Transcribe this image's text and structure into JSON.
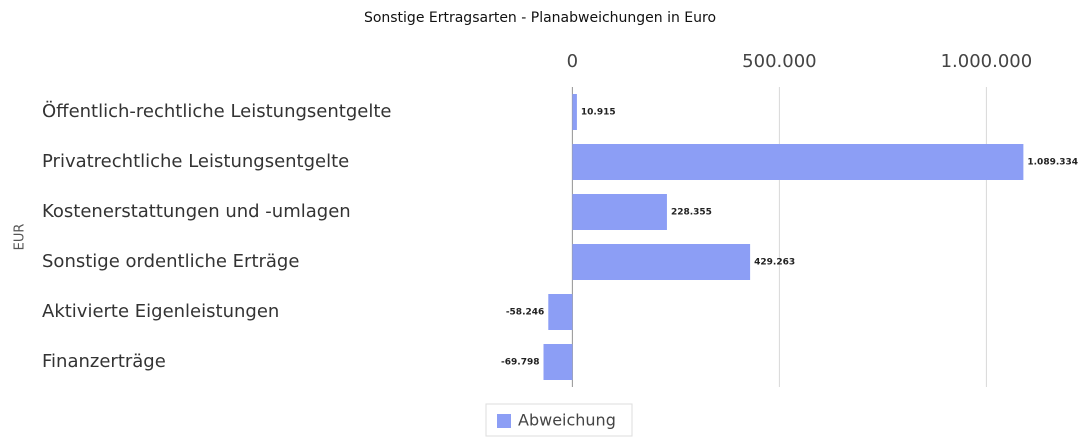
{
  "chart_data": {
    "type": "bar",
    "orientation": "horizontal",
    "title": "Sonstige Ertragsarten - Planabweichungen in Euro",
    "y_axis_label": "EUR",
    "categories": [
      "Öffentlich-rechtliche Leistungsentgelte",
      "Privatrechtliche Leistungsentgelte",
      "Kostenerstattungen und -umlagen",
      "Sonstige ordentliche Erträge",
      "Aktivierte Eigenleistungen",
      "Finanzerträge"
    ],
    "series": [
      {
        "name": "Abweichung",
        "color": "#8c9ef5",
        "values": [
          10915,
          1089334,
          228355,
          429263,
          -58246,
          -69798
        ],
        "value_labels": [
          "10.915",
          "1.089.334",
          "228.355",
          "429.263",
          "-58.246",
          "-69.798"
        ]
      }
    ],
    "xlim": [
      -100000,
      1150000
    ],
    "xticks": [
      0,
      {
        "value": 500000,
        "label": "500.000"
      },
      {
        "value": 1000000,
        "label": "1.000.000"
      }
    ],
    "grid": true,
    "legend": "bottom"
  }
}
